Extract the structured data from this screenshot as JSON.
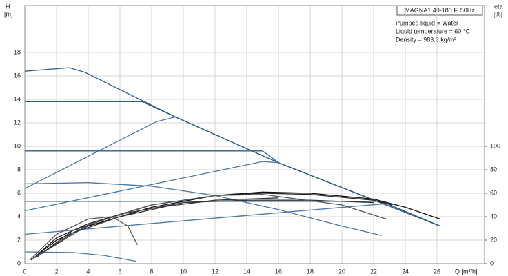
{
  "chart_data": {
    "type": "line",
    "title": "MAGNA1 40-180 F, 50Hz",
    "annotations": [
      "Pumped liquid = Water",
      "Liquid temperature = 60 °C",
      "Density = 983.2 kg/m³"
    ],
    "ylabel": "H",
    "ylabel_unit": "[m]",
    "y2label": "eta",
    "y2label_unit": "[%]",
    "xlabel": "Q [m³/h]",
    "xlim": [
      0,
      29
    ],
    "xticks": [
      0,
      2,
      4,
      6,
      8,
      10,
      12,
      14,
      16,
      18,
      20,
      22,
      24,
      26
    ],
    "ylim": [
      0,
      22
    ],
    "yticks": [
      0,
      2,
      4,
      6,
      8,
      10,
      12,
      14,
      16,
      18
    ],
    "y2lim": [
      0,
      220
    ],
    "y2ticks": [
      0,
      20,
      40,
      60,
      80,
      100
    ],
    "grid": true,
    "series": [
      {
        "color": "#2d5b8a",
        "x": [
          0,
          2.8,
          3.8,
          9.5,
          16,
          26.2
        ],
        "values": [
          16.4,
          16.7,
          16.3,
          12.5,
          8.6,
          3.2
        ]
      },
      {
        "color": "#2d5b8a",
        "x": [
          0,
          7.4,
          9.5,
          16,
          26.2
        ],
        "values": [
          13.8,
          13.8,
          12.5,
          8.6,
          3.2
        ]
      },
      {
        "color": "#2d5b8a",
        "x": [
          0,
          15,
          16,
          26.2
        ],
        "values": [
          9.6,
          9.6,
          8.6,
          3.2
        ]
      },
      {
        "color": "#2d5b8a",
        "x": [
          0,
          22.5,
          26.2
        ],
        "values": [
          5.3,
          5.3,
          3.2
        ]
      },
      {
        "color": "#4a78a8",
        "x": [
          0,
          8.3,
          9.5
        ],
        "values": [
          6.4,
          12.1,
          12.5
        ]
      },
      {
        "color": "#4a78a8",
        "x": [
          0,
          15,
          16
        ],
        "values": [
          4.5,
          8.7,
          8.6
        ]
      },
      {
        "color": "#4a78a8",
        "x": [
          0,
          22.7
        ],
        "values": [
          2.5,
          5.1
        ]
      },
      {
        "color": "#4a78a8",
        "x": [
          0,
          4,
          8,
          12,
          16,
          20,
          22.5
        ],
        "values": [
          6.8,
          6.9,
          6.6,
          5.8,
          4.6,
          3.2,
          2.4
        ]
      },
      {
        "color": "#4a78a8",
        "x": [
          0,
          3,
          5,
          7
        ],
        "values": [
          1.0,
          0.95,
          0.7,
          0.2
        ]
      },
      {
        "color": "#111111",
        "axis": "y2",
        "x": [
          0.4,
          2,
          4,
          8,
          12,
          15,
          18,
          22,
          24,
          26.2
        ],
        "values": [
          3,
          20,
          32,
          48,
          58,
          61,
          60,
          55,
          48,
          38
        ]
      },
      {
        "color": "#222222",
        "axis": "y2",
        "x": [
          0.5,
          2,
          4,
          8,
          12,
          15,
          18,
          22,
          23.2
        ],
        "values": [
          4,
          22,
          34,
          50,
          58,
          60,
          59,
          54,
          50
        ]
      },
      {
        "color": "#333333",
        "axis": "y2",
        "x": [
          0.8,
          3,
          6,
          10,
          14,
          18,
          22
        ],
        "values": [
          6,
          28,
          42,
          52,
          54,
          54,
          52
        ]
      },
      {
        "color": "#555555",
        "axis": "y2",
        "x": [
          0.5,
          4,
          8,
          12,
          15,
          20,
          22.8
        ],
        "values": [
          4,
          33,
          50,
          58,
          59,
          50,
          38
        ]
      },
      {
        "color": "#555555",
        "axis": "y2",
        "x": [
          0.3,
          2,
          4,
          5.5,
          6.5,
          7.1
        ],
        "values": [
          3,
          25,
          38,
          40,
          32,
          16
        ]
      },
      {
        "color": "#333333",
        "axis": "y2",
        "x": [
          1,
          3,
          6,
          9,
          12,
          16
        ],
        "values": [
          8,
          26,
          40,
          49,
          54,
          56
        ]
      }
    ]
  }
}
